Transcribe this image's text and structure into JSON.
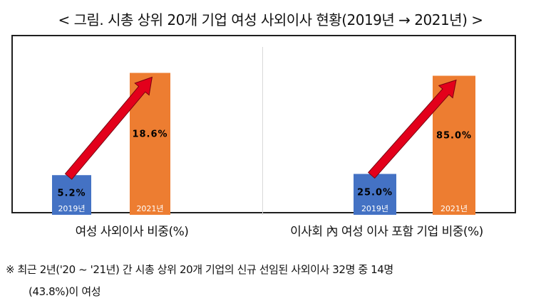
{
  "title": "< 그림. 시총 상위 20개 기업 여성 사외이사 현황(2019년 → 2021년) >",
  "chart_data": [
    {
      "type": "bar",
      "title": "여성 사외이사 비중(%)",
      "categories": [
        "2019년",
        "2021년"
      ],
      "values": [
        5.2,
        18.6
      ],
      "value_labels": [
        "5.2%",
        "18.6%"
      ],
      "colors": [
        "#4472C4",
        "#ED7D31"
      ],
      "ylim": [
        0,
        22
      ],
      "arrow": "increase"
    },
    {
      "type": "bar",
      "title": "이사회 內 여성 이사 포함 기업 비중(%)",
      "categories": [
        "2019년",
        "2021년"
      ],
      "values": [
        25.0,
        85.0
      ],
      "value_labels": [
        "25.0%",
        "85.0%"
      ],
      "colors": [
        "#4472C4",
        "#ED7D31"
      ],
      "ylim": [
        0,
        100
      ],
      "arrow": "increase"
    }
  ],
  "note": {
    "line1": "※ 최근 2년('20 ~ '21년) 간 시총 상위 20개 기업의 신규 선임된 사외이사 32명 중 14명",
    "line2": "(43.8%)이 여성"
  },
  "colors": {
    "arrow_fill": "#E3001B",
    "arrow_stroke": "#7a0010",
    "frame": "#1f1f1f"
  }
}
